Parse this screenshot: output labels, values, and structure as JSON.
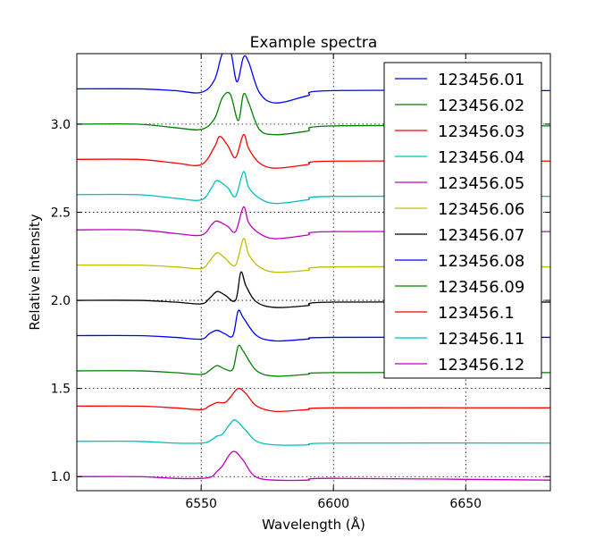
{
  "chart_data": {
    "type": "line",
    "title": "Example spectra",
    "xlabel": "Wavelength (Å)",
    "ylabel": "Relative intensity",
    "xlim": [
      6503,
      6682
    ],
    "ylim": [
      0.92,
      3.4
    ],
    "xticks": [
      6550,
      6600,
      6650
    ],
    "xtick_labels": [
      "6550",
      "6600",
      "6650"
    ],
    "yticks": [
      1.0,
      1.5,
      2.0,
      2.5,
      3.0
    ],
    "ytick_labels": [
      "1.0",
      "1.5",
      "2.0",
      "2.5",
      "3.0"
    ],
    "grid": true,
    "legend_position": "top-right",
    "series": [
      {
        "name": "123456.01",
        "color": "#0000ff",
        "offset": 2.2,
        "points": [
          [
            6503,
            1.0
          ],
          [
            6526,
            1.0
          ],
          [
            6540,
            0.99
          ],
          [
            6550,
            0.98
          ],
          [
            6555,
            1.05
          ],
          [
            6558,
            1.2
          ],
          [
            6561,
            1.22
          ],
          [
            6563.5,
            1.04
          ],
          [
            6566,
            1.18
          ],
          [
            6568,
            1.15
          ],
          [
            6572,
            0.98
          ],
          [
            6578,
            0.92
          ],
          [
            6590,
            0.96
          ],
          [
            6600,
            0.99
          ],
          [
            6682,
            0.99
          ]
        ]
      },
      {
        "name": "123456.02",
        "color": "#008000",
        "offset": 2.0,
        "points": [
          [
            6503,
            1.0
          ],
          [
            6526,
            1.0
          ],
          [
            6540,
            0.98
          ],
          [
            6550,
            0.97
          ],
          [
            6555,
            1.03
          ],
          [
            6558,
            1.15
          ],
          [
            6561,
            1.17
          ],
          [
            6564,
            1.02
          ],
          [
            6566,
            1.17
          ],
          [
            6568,
            1.12
          ],
          [
            6572,
            0.97
          ],
          [
            6578,
            0.94
          ],
          [
            6590,
            0.96
          ],
          [
            6600,
            0.99
          ],
          [
            6682,
            0.99
          ]
        ]
      },
      {
        "name": "123456.03",
        "color": "#ff0000",
        "offset": 1.8,
        "points": [
          [
            6503,
            1.0
          ],
          [
            6526,
            1.0
          ],
          [
            6540,
            0.98
          ],
          [
            6550,
            0.97
          ],
          [
            6555,
            1.07
          ],
          [
            6557,
            1.13
          ],
          [
            6560,
            1.08
          ],
          [
            6563,
            1.01
          ],
          [
            6566,
            1.14
          ],
          [
            6568,
            1.06
          ],
          [
            6572,
            0.98
          ],
          [
            6578,
            0.95
          ],
          [
            6590,
            0.97
          ],
          [
            6600,
            0.99
          ],
          [
            6682,
            0.99
          ]
        ]
      },
      {
        "name": "123456.04",
        "color": "#00bfbf",
        "offset": 1.6,
        "points": [
          [
            6503,
            1.0
          ],
          [
            6526,
            1.0
          ],
          [
            6540,
            0.98
          ],
          [
            6550,
            0.97
          ],
          [
            6554,
            1.04
          ],
          [
            6556,
            1.08
          ],
          [
            6560,
            1.04
          ],
          [
            6563,
            0.99
          ],
          [
            6566,
            1.13
          ],
          [
            6568,
            1.04
          ],
          [
            6572,
            0.98
          ],
          [
            6578,
            0.95
          ],
          [
            6590,
            0.97
          ],
          [
            6600,
            0.99
          ],
          [
            6682,
            0.99
          ]
        ]
      },
      {
        "name": "123456.05",
        "color": "#bf00bf",
        "offset": 1.4,
        "points": [
          [
            6503,
            1.0
          ],
          [
            6526,
            1.0
          ],
          [
            6540,
            0.98
          ],
          [
            6550,
            0.97
          ],
          [
            6554,
            1.03
          ],
          [
            6556,
            1.05
          ],
          [
            6560,
            1.02
          ],
          [
            6563,
            0.99
          ],
          [
            6566,
            1.13
          ],
          [
            6568,
            1.04
          ],
          [
            6572,
            0.98
          ],
          [
            6578,
            0.95
          ],
          [
            6590,
            0.97
          ],
          [
            6600,
            0.99
          ],
          [
            6682,
            0.99
          ]
        ]
      },
      {
        "name": "123456.06",
        "color": "#bfbf00",
        "offset": 1.2,
        "points": [
          [
            6503,
            1.0
          ],
          [
            6526,
            1.0
          ],
          [
            6540,
            0.99
          ],
          [
            6550,
            0.98
          ],
          [
            6553,
            1.02
          ],
          [
            6556,
            1.07
          ],
          [
            6559,
            1.04
          ],
          [
            6563,
            1.0
          ],
          [
            6566,
            1.15
          ],
          [
            6568,
            1.06
          ],
          [
            6572,
            0.99
          ],
          [
            6578,
            0.96
          ],
          [
            6590,
            0.97
          ],
          [
            6600,
            0.99
          ],
          [
            6682,
            0.99
          ]
        ]
      },
      {
        "name": "123456.07",
        "color": "#000000",
        "offset": 1.0,
        "points": [
          [
            6503,
            1.0
          ],
          [
            6526,
            1.0
          ],
          [
            6540,
            0.99
          ],
          [
            6550,
            0.98
          ],
          [
            6553,
            1.01
          ],
          [
            6556,
            1.05
          ],
          [
            6559,
            1.03
          ],
          [
            6563,
            1.0
          ],
          [
            6565,
            1.16
          ],
          [
            6567,
            1.08
          ],
          [
            6571,
            0.99
          ],
          [
            6578,
            0.96
          ],
          [
            6590,
            0.97
          ],
          [
            6600,
            0.99
          ],
          [
            6682,
            0.99
          ]
        ]
      },
      {
        "name": "123456.08",
        "color": "#0000ff",
        "offset": 0.8,
        "points": [
          [
            6503,
            1.0
          ],
          [
            6526,
            1.0
          ],
          [
            6540,
            0.99
          ],
          [
            6550,
            0.98
          ],
          [
            6553,
            1.01
          ],
          [
            6556,
            1.03
          ],
          [
            6559,
            1.01
          ],
          [
            6562,
            1.0
          ],
          [
            6564,
            1.14
          ],
          [
            6566,
            1.1
          ],
          [
            6571,
            1.0
          ],
          [
            6578,
            0.97
          ],
          [
            6590,
            0.98
          ],
          [
            6600,
            0.99
          ],
          [
            6682,
            0.99
          ]
        ]
      },
      {
        "name": "123456.09",
        "color": "#008000",
        "offset": 0.6,
        "points": [
          [
            6503,
            1.0
          ],
          [
            6526,
            1.0
          ],
          [
            6540,
            0.99
          ],
          [
            6550,
            0.98
          ],
          [
            6553,
            1.0
          ],
          [
            6556,
            1.03
          ],
          [
            6559,
            1.01
          ],
          [
            6562,
            1.01
          ],
          [
            6564,
            1.14
          ],
          [
            6566,
            1.11
          ],
          [
            6571,
            1.0
          ],
          [
            6578,
            0.97
          ],
          [
            6590,
            0.98
          ],
          [
            6600,
            0.99
          ],
          [
            6682,
            0.99
          ]
        ]
      },
      {
        "name": "123456.1",
        "color": "#ff0000",
        "offset": 0.4,
        "points": [
          [
            6503,
            1.0
          ],
          [
            6526,
            1.0
          ],
          [
            6540,
            0.99
          ],
          [
            6550,
            0.98
          ],
          [
            6553,
            1.0
          ],
          [
            6556,
            1.02
          ],
          [
            6559,
            1.02
          ],
          [
            6561,
            1.05
          ],
          [
            6564,
            1.1
          ],
          [
            6567,
            1.07
          ],
          [
            6571,
            1.0
          ],
          [
            6578,
            0.97
          ],
          [
            6590,
            0.98
          ],
          [
            6600,
            0.99
          ],
          [
            6682,
            0.99
          ]
        ]
      },
      {
        "name": "123456.11",
        "color": "#00bfbf",
        "offset": 0.2,
        "points": [
          [
            6503,
            1.0
          ],
          [
            6526,
            1.0
          ],
          [
            6540,
            0.99
          ],
          [
            6550,
            0.99
          ],
          [
            6553,
            1.0
          ],
          [
            6556,
            1.03
          ],
          [
            6558,
            1.04
          ],
          [
            6561,
            1.1
          ],
          [
            6563,
            1.12
          ],
          [
            6567,
            1.06
          ],
          [
            6571,
            1.0
          ],
          [
            6578,
            0.98
          ],
          [
            6590,
            0.98
          ],
          [
            6600,
            0.99
          ],
          [
            6682,
            0.99
          ]
        ]
      },
      {
        "name": "123456.12",
        "color": "#bf00bf",
        "offset": 0.0,
        "points": [
          [
            6503,
            1.0
          ],
          [
            6526,
            1.0
          ],
          [
            6540,
            0.99
          ],
          [
            6550,
            0.99
          ],
          [
            6554,
            1.0
          ],
          [
            6556,
            1.03
          ],
          [
            6558,
            1.06
          ],
          [
            6561,
            1.13
          ],
          [
            6563,
            1.14
          ],
          [
            6566,
            1.09
          ],
          [
            6569,
            1.02
          ],
          [
            6572,
            0.99
          ],
          [
            6578,
            0.98
          ],
          [
            6590,
            0.98
          ],
          [
            6600,
            0.99
          ],
          [
            6682,
            0.98
          ]
        ]
      }
    ]
  }
}
